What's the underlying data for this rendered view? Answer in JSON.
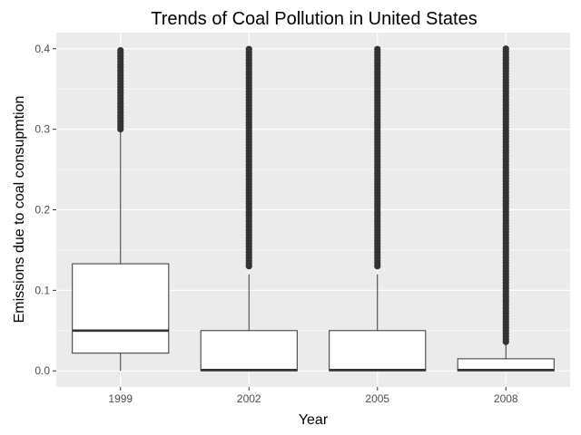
{
  "chart_data": {
    "type": "boxplot",
    "title": "Trends of Coal Pollution in United States",
    "xlabel": "Year",
    "ylabel": "Emissions due to coal consupmtion",
    "ylim": [
      -0.02,
      0.42
    ],
    "y_ticks": [
      0.0,
      0.1,
      0.2,
      0.3,
      0.4
    ],
    "y_tick_labels": [
      "0.0",
      "0.1",
      "0.2",
      "0.3",
      "0.4"
    ],
    "categories": [
      "1999",
      "2002",
      "2005",
      "2008"
    ],
    "boxes": [
      {
        "category": "1999",
        "min": 0.0,
        "q1": 0.022,
        "median": 0.05,
        "q3": 0.133,
        "whisker_high": 0.3,
        "outliers_range": [
          0.3,
          0.4
        ]
      },
      {
        "category": "2002",
        "min": 0.0,
        "q1": 0.0,
        "median": 0.001,
        "q3": 0.05,
        "whisker_high": 0.12,
        "outliers_range": [
          0.13,
          0.4
        ]
      },
      {
        "category": "2005",
        "min": 0.0,
        "q1": 0.0,
        "median": 0.001,
        "q3": 0.05,
        "whisker_high": 0.12,
        "outliers_range": [
          0.13,
          0.4
        ]
      },
      {
        "category": "2008",
        "min": 0.0,
        "q1": 0.0,
        "median": 0.001,
        "q3": 0.015,
        "whisker_high": 0.035,
        "outliers_range": [
          0.036,
          0.4
        ]
      }
    ],
    "grid": true,
    "colors": {
      "panel": "#ebebeb",
      "grid": "#ffffff",
      "box_fill": "#ffffff",
      "stroke": "#333333",
      "outlier": "#333333"
    }
  }
}
